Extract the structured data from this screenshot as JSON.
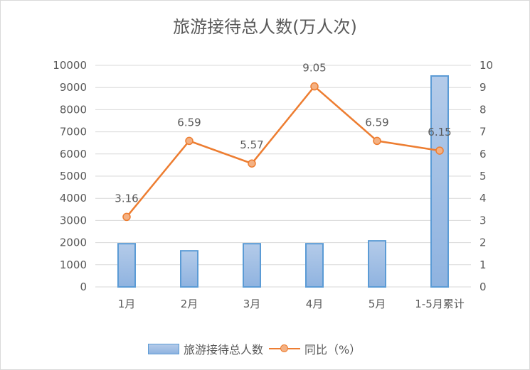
{
  "chart_data": {
    "type": "bar+line",
    "title": "旅游接待总人数(万人次)",
    "categories": [
      "1月",
      "2月",
      "3月",
      "4月",
      "5月",
      "1-5月累计"
    ],
    "series": [
      {
        "name": "旅游接待总人数",
        "type": "bar",
        "axis": "left",
        "values": [
          1950,
          1630,
          1950,
          1950,
          2080,
          9520
        ]
      },
      {
        "name": "同比（%）",
        "type": "line",
        "axis": "right",
        "values": [
          3.16,
          6.59,
          5.57,
          9.05,
          6.59,
          6.15
        ]
      }
    ],
    "data_labels": [
      "3.16",
      "6.59",
      "5.57",
      "9.05",
      "6.59",
      "6.15"
    ],
    "left_axis": {
      "ticks": [
        "0",
        "1000",
        "2000",
        "3000",
        "4000",
        "5000",
        "6000",
        "7000",
        "8000",
        "9000",
        "10000"
      ],
      "ylim": [
        0,
        10000
      ]
    },
    "right_axis": {
      "ticks": [
        "0",
        "1",
        "2",
        "3",
        "4",
        "5",
        "6",
        "7",
        "8",
        "9",
        "10"
      ],
      "ylim": [
        0,
        10
      ]
    },
    "grid": true,
    "legend_position": "bottom",
    "colors": {
      "bar": "#9dbde6",
      "bar_border": "#5b9bd5",
      "line": "#ed7d31",
      "marker_fill": "#f4b183"
    }
  },
  "legend": {
    "bar_label": "旅游接待总人数",
    "line_label": "同比（%）"
  }
}
